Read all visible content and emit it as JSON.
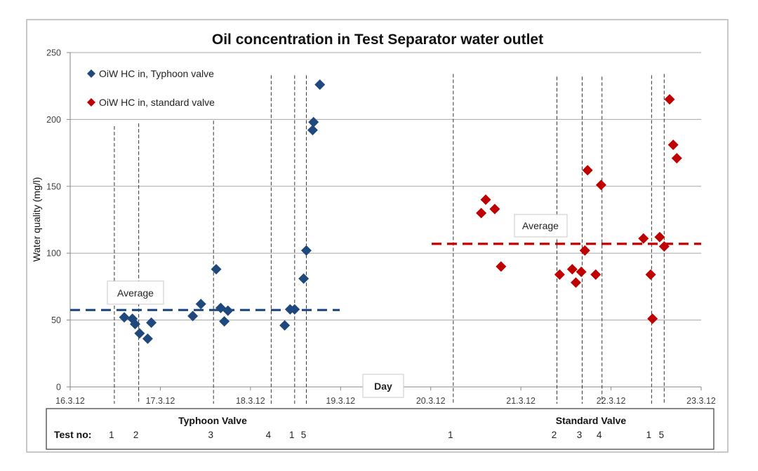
{
  "chart_data": {
    "type": "scatter",
    "title": "Oil concentration in Test Separator water outlet",
    "xlabel": "Day",
    "ylabel": "Water quality (mg/l)",
    "x_unit": "days since 16.3.12",
    "xlim": [
      0,
      7
    ],
    "ylim": [
      0,
      250
    ],
    "y_ticks": [
      0,
      50,
      100,
      150,
      200,
      250
    ],
    "x_ticks": [
      {
        "value": 0,
        "label": "16.3.12"
      },
      {
        "value": 1,
        "label": "17.3.12"
      },
      {
        "value": 2,
        "label": "18.3.12"
      },
      {
        "value": 3,
        "label": "19.3.12"
      },
      {
        "value": 4,
        "label": "20.3.12"
      },
      {
        "value": 5,
        "label": "21.3.12"
      },
      {
        "value": 6,
        "label": "22.3.12"
      },
      {
        "value": 7,
        "label": "23.3.12"
      }
    ],
    "grid": "horizontal",
    "legend_position": "top-left",
    "series": [
      {
        "name": "OiW HC in, Typhoon valve",
        "color": "#1f497d",
        "marker": "diamond",
        "points": [
          [
            0.6,
            52
          ],
          [
            0.69,
            51
          ],
          [
            0.72,
            47
          ],
          [
            0.77,
            40
          ],
          [
            0.86,
            36
          ],
          [
            0.9,
            48
          ],
          [
            1.36,
            53
          ],
          [
            1.45,
            62
          ],
          [
            1.62,
            88
          ],
          [
            1.67,
            59
          ],
          [
            1.71,
            49
          ],
          [
            1.75,
            57
          ],
          [
            2.38,
            46
          ],
          [
            2.44,
            58
          ],
          [
            2.49,
            58
          ],
          [
            2.59,
            81
          ],
          [
            2.62,
            102
          ],
          [
            2.69,
            192
          ],
          [
            2.7,
            198
          ],
          [
            2.77,
            226
          ]
        ],
        "average": {
          "value": 57.5,
          "x_range": [
            0,
            2.99
          ],
          "label": "Average"
        }
      },
      {
        "name": "OiW HC in, standard valve",
        "color": "#c00000",
        "marker": "diamond",
        "points": [
          [
            4.56,
            130
          ],
          [
            4.61,
            140
          ],
          [
            4.71,
            133
          ],
          [
            4.78,
            90
          ],
          [
            5.43,
            84
          ],
          [
            5.57,
            88
          ],
          [
            5.61,
            78
          ],
          [
            5.67,
            86
          ],
          [
            5.71,
            102
          ],
          [
            5.74,
            162
          ],
          [
            5.83,
            84
          ],
          [
            5.89,
            151
          ],
          [
            6.36,
            111
          ],
          [
            6.44,
            84
          ],
          [
            6.46,
            51
          ],
          [
            6.54,
            112
          ],
          [
            6.59,
            105
          ],
          [
            6.65,
            215
          ],
          [
            6.69,
            181
          ],
          [
            6.73,
            171
          ]
        ],
        "average": {
          "value": 107,
          "x_range": [
            4.01,
            7.0
          ],
          "label": "Average"
        }
      }
    ],
    "test_markers": {
      "typhoon": {
        "title": "Typhoon Valve",
        "lines": [
          {
            "x": 0.49,
            "label": "1",
            "top": 195
          },
          {
            "x": 0.76,
            "label": "2",
            "top": 197
          },
          {
            "x": 1.59,
            "label": "3",
            "top": 199
          },
          {
            "x": 2.23,
            "label": "4",
            "top": 233
          },
          {
            "x": 2.49,
            "label": "1",
            "top": 233
          },
          {
            "x": 2.62,
            "label": "5",
            "top": 233
          }
        ]
      },
      "standard": {
        "title": "Standard Valve",
        "lines": [
          {
            "x": 4.25,
            "label": "1",
            "top": 234
          },
          {
            "x": 5.4,
            "label": "2",
            "top": 232
          },
          {
            "x": 5.68,
            "label": "3",
            "top": 232
          },
          {
            "x": 5.9,
            "label": "4",
            "top": 232
          },
          {
            "x": 6.45,
            "label": "1",
            "top": 233
          },
          {
            "x": 6.59,
            "label": "5",
            "top": 234
          }
        ]
      }
    },
    "table": {
      "row_label": "Test no:"
    }
  }
}
